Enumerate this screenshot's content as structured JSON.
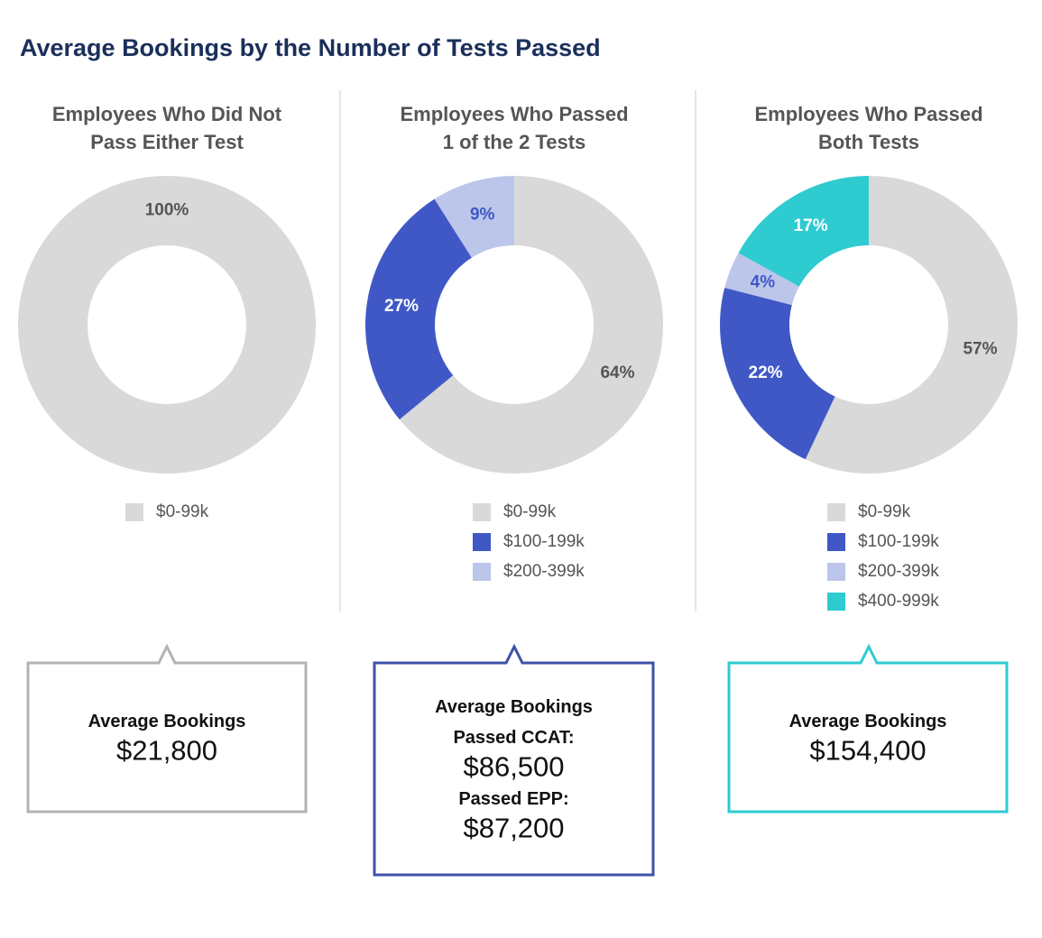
{
  "title": "Average Bookings by the Number of Tests Passed",
  "chart_data": [
    {
      "type": "donut",
      "title": [
        "Employees Who Did Not",
        "Pass Either Test"
      ],
      "categories": [
        "$0-99k"
      ],
      "values": [
        100
      ],
      "value_labels": [
        "100%"
      ],
      "colors": [
        "#d9d9d9"
      ],
      "label_colors": [
        "#555555"
      ]
    },
    {
      "type": "donut",
      "title": [
        "Employees Who Passed",
        "1 of the 2 Tests"
      ],
      "categories": [
        "$0-99k",
        "$100-199k",
        "$200-399k"
      ],
      "values": [
        64,
        27,
        9
      ],
      "value_labels": [
        "64%",
        "27%",
        "9%"
      ],
      "colors": [
        "#d9d9d9",
        "#4058c6",
        "#bcc5ea"
      ],
      "label_colors": [
        "#555555",
        "#ffffff",
        "#4058c6"
      ]
    },
    {
      "type": "donut",
      "title": [
        "Employees Who Passed",
        "Both Tests"
      ],
      "categories": [
        "$0-99k",
        "$100-199k",
        "$200-399k",
        "$400-999k"
      ],
      "values": [
        57,
        22,
        4,
        17
      ],
      "value_labels": [
        "57%",
        "22%",
        "4%",
        "17%"
      ],
      "colors": [
        "#d9d9d9",
        "#4058c6",
        "#bcc5ea",
        "#2ecbd1"
      ],
      "label_colors": [
        "#555555",
        "#ffffff",
        "#4058c6",
        "#ffffff"
      ]
    }
  ],
  "callouts": [
    {
      "heading": "Average Bookings",
      "color": "#b3b3b3",
      "items": [
        {
          "value": "$21,800"
        }
      ]
    },
    {
      "heading": "Average Bookings",
      "color": "#3f51a8",
      "items": [
        {
          "label": "Passed CCAT:",
          "value": "$86,500"
        },
        {
          "label": "Passed EPP:",
          "value": "$87,200"
        }
      ]
    },
    {
      "heading": "Average Bookings",
      "color": "#2ecbd1",
      "items": [
        {
          "value": "$154,400"
        }
      ]
    }
  ]
}
